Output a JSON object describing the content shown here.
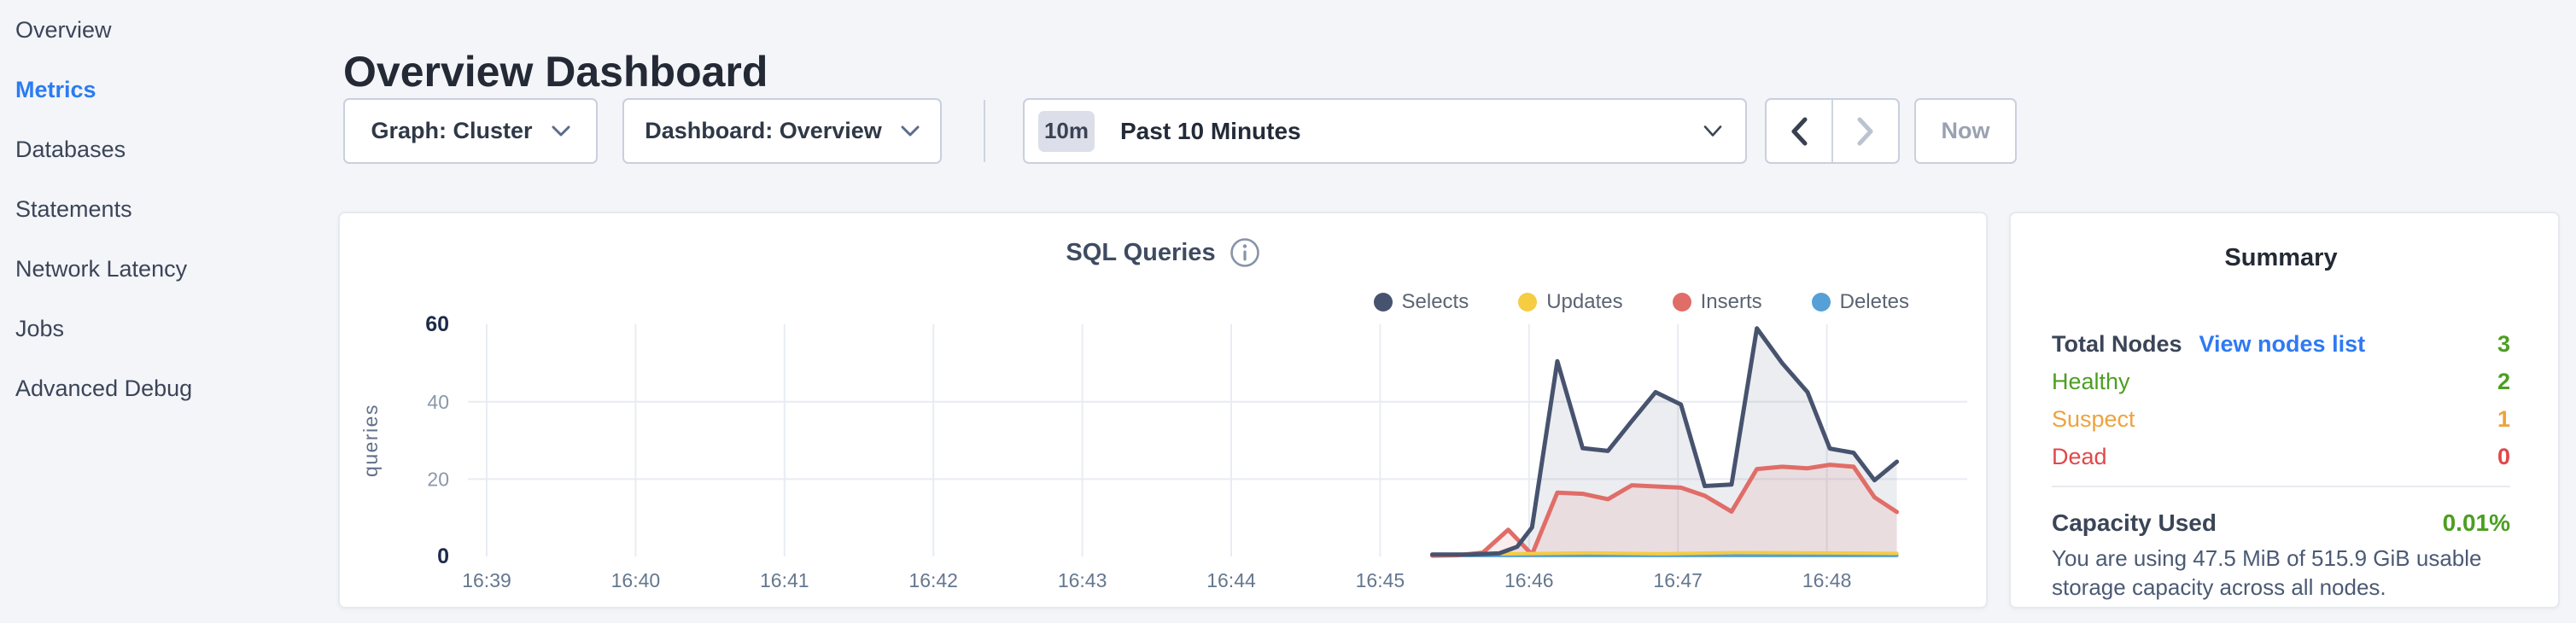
{
  "sidebar": {
    "items": [
      {
        "label": "Overview",
        "active": false
      },
      {
        "label": "Metrics",
        "active": true
      },
      {
        "label": "Databases",
        "active": false
      },
      {
        "label": "Statements",
        "active": false
      },
      {
        "label": "Network Latency",
        "active": false
      },
      {
        "label": "Jobs",
        "active": false
      },
      {
        "label": "Advanced Debug",
        "active": false
      }
    ]
  },
  "header": {
    "title": "Overview Dashboard"
  },
  "controls": {
    "graph_selector": {
      "label": "Graph: Cluster"
    },
    "dashboard_selector": {
      "label": "Dashboard: Overview"
    },
    "time_selector": {
      "badge": "10m",
      "label": "Past 10 Minutes"
    },
    "prev_icon": "chevron-left",
    "next_icon": "chevron-right",
    "now_button": "Now"
  },
  "chart_card": {
    "title": "SQL Queries",
    "info_icon": "info-circle-icon"
  },
  "chart_data": {
    "type": "area",
    "title": "SQL Queries",
    "ylabel": "queries",
    "x_ticks": [
      "16:39",
      "16:40",
      "16:41",
      "16:42",
      "16:43",
      "16:44",
      "16:45",
      "16:46",
      "16:47",
      "16:48"
    ],
    "y_ticks": [
      0,
      20,
      40,
      60
    ],
    "ylim": [
      0,
      62
    ],
    "grid": true,
    "legend_position": "top-right",
    "x_unit": "minutes after 16:39",
    "series": [
      {
        "name": "Selects",
        "color": "#47536e",
        "fill": "rgba(71,83,110,0.10)",
        "width": 5,
        "x": [
          6.35,
          6.6,
          6.8,
          6.92,
          7.02,
          7.19,
          7.36,
          7.53,
          7.69,
          7.85,
          8.02,
          8.18,
          8.36,
          8.53,
          8.7,
          8.87,
          9.02,
          9.18,
          9.32,
          9.47
        ],
        "values": [
          0.5,
          0.5,
          0.8,
          2.5,
          7.5,
          50.5,
          28.0,
          27.3,
          35.0,
          42.5,
          39.3,
          18.2,
          18.6,
          59.0,
          50.0,
          42.5,
          27.9,
          26.8,
          19.7,
          24.5
        ]
      },
      {
        "name": "Updates",
        "color": "#f5cc42",
        "fill": null,
        "width": 4,
        "x": [
          6.35,
          6.9,
          7.4,
          7.9,
          8.4,
          9.0,
          9.47
        ],
        "values": [
          0.5,
          0.7,
          0.9,
          0.7,
          1.0,
          0.9,
          0.8
        ]
      },
      {
        "name": "Inserts",
        "color": "#e06d68",
        "fill": "rgba(224,109,104,0.12)",
        "width": 5,
        "x": [
          6.35,
          6.52,
          6.69,
          6.86,
          7.02,
          7.19,
          7.36,
          7.53,
          7.69,
          7.85,
          8.02,
          8.18,
          8.36,
          8.53,
          8.7,
          8.87,
          9.02,
          9.18,
          9.32,
          9.47
        ],
        "values": [
          0.2,
          0.3,
          1.0,
          6.9,
          0.5,
          16.5,
          16.2,
          14.8,
          18.4,
          18.1,
          17.8,
          15.7,
          11.6,
          22.6,
          23.2,
          22.8,
          23.7,
          23.2,
          15.3,
          11.5
        ]
      },
      {
        "name": "Deletes",
        "color": "#55a0d6",
        "fill": null,
        "width": 4,
        "x": [
          6.35,
          9.47
        ],
        "values": [
          0.25,
          0.25
        ]
      }
    ]
  },
  "summary": {
    "title": "Summary",
    "total_nodes": {
      "label": "Total Nodes",
      "link": "View nodes list",
      "value": "3"
    },
    "rows": [
      {
        "label": "Healthy",
        "value": "2",
        "color": "#4c9e22"
      },
      {
        "label": "Suspect",
        "value": "1",
        "color": "#eda33d"
      },
      {
        "label": "Dead",
        "value": "0",
        "color": "#e0484a"
      }
    ],
    "capacity": {
      "label": "Capacity Used",
      "value": "0.01%",
      "description": "You are using 47.5 MiB of 515.9 GiB usable storage capacity across all nodes."
    }
  },
  "colors": {
    "accent_blue": "#2b7cf0",
    "link_blue": "#2f7af2",
    "green": "#4c9e22",
    "orange": "#eda33d",
    "red": "#e0484a",
    "selects": "#47536e",
    "updates": "#f5cc42",
    "inserts": "#e06d68",
    "deletes": "#55a0d6",
    "page_bg": "#f4f5f9",
    "card_bg": "#ffffff"
  }
}
